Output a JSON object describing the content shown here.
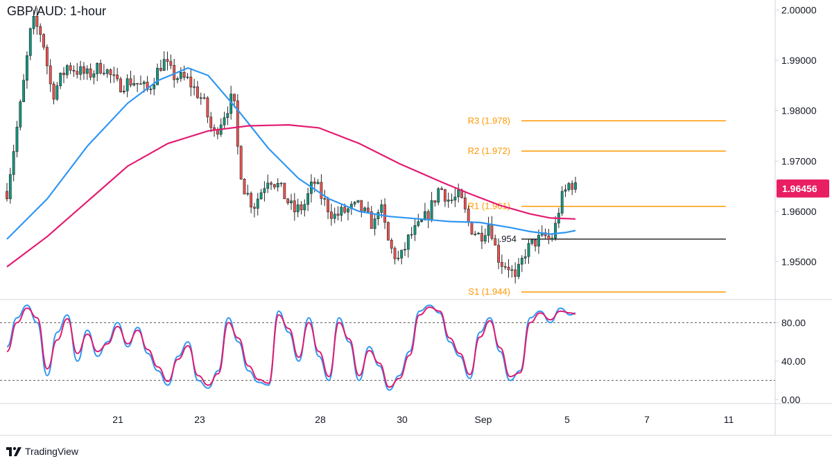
{
  "chart_title": "GBP/AUD: 1-hour",
  "branding": {
    "name": "TradingView",
    "logo_text": "TV"
  },
  "colors": {
    "bull": "#0f9980",
    "bear": "#ef5350",
    "candle": "#222222",
    "sma100": "#2f96f3",
    "sma200": "#e31a6f",
    "pivot": "#ff9800",
    "support_line": "#000000",
    "stoch_k": "#2f96f3",
    "stoch_d": "#e31a6f",
    "price_tag": "#e91e63",
    "axis_text": "#131722",
    "border": "#d1d4dc"
  },
  "chart_data": [
    {
      "type": "candlestick",
      "title": "GBP/AUD: 1-hour",
      "price_axis": {
        "ticks": [
          "2.00000",
          "1.99000",
          "1.98000",
          "1.97000",
          "1.96000",
          "1.95000"
        ],
        "range": [
          1.9425,
          2.002
        ]
      },
      "time_axis": {
        "labels": [
          "21",
          "23",
          "28",
          "30",
          "Sep",
          "5",
          "7",
          "11"
        ]
      },
      "current_price": "1.96456",
      "levels": [
        {
          "label": "R3 (1.978)",
          "value": 1.978
        },
        {
          "label": "R2 (1.972)",
          "value": 1.972
        },
        {
          "label": "R1 (1.961)",
          "value": 1.961
        },
        {
          "label": ".954",
          "value": 1.9545
        },
        {
          "label": "S1 (1.944)",
          "value": 1.944
        }
      ],
      "price_path": [
        [
          0,
          1.964
        ],
        [
          3,
          1.983
        ],
        [
          5,
          1.998
        ],
        [
          7,
          1.995
        ],
        [
          9,
          1.983
        ],
        [
          12,
          1.989
        ],
        [
          16,
          1.987
        ],
        [
          19,
          1.989
        ],
        [
          22,
          1.985
        ],
        [
          25,
          1.986
        ],
        [
          28,
          1.984
        ],
        [
          31,
          1.99
        ],
        [
          33,
          1.987
        ],
        [
          36,
          1.986
        ],
        [
          39,
          1.982
        ],
        [
          41,
          1.975
        ],
        [
          43,
          1.979
        ],
        [
          45,
          1.983
        ],
        [
          46,
          1.971
        ],
        [
          47,
          1.965
        ],
        [
          49,
          1.961
        ],
        [
          52,
          1.967
        ],
        [
          54,
          1.965
        ],
        [
          57,
          1.96
        ],
        [
          59,
          1.961
        ],
        [
          61,
          1.966
        ],
        [
          63,
          1.962
        ],
        [
          65,
          1.959
        ],
        [
          67,
          1.96
        ],
        [
          70,
          1.961
        ],
        [
          73,
          1.957
        ],
        [
          74,
          1.962
        ],
        [
          76,
          1.953
        ],
        [
          78,
          1.95
        ],
        [
          80,
          1.955
        ],
        [
          82,
          1.957
        ],
        [
          84,
          1.96
        ],
        [
          86,
          1.965
        ],
        [
          88,
          1.962
        ],
        [
          90,
          1.963
        ],
        [
          92,
          1.957
        ],
        [
          94,
          1.955
        ],
        [
          96,
          1.958
        ],
        [
          97,
          1.953
        ],
        [
          98,
          1.95
        ],
        [
          100,
          1.949
        ],
        [
          101,
          1.946
        ],
        [
          103,
          1.952
        ],
        [
          105,
          1.954
        ],
        [
          107,
          1.955
        ],
        [
          108,
          1.954
        ],
        [
          109,
          1.957
        ],
        [
          110,
          1.962
        ],
        [
          112,
          1.966
        ],
        [
          113,
          1.9646
        ]
      ],
      "series": [
        {
          "name": "",
          "type": "sma",
          "values": [
            [
              0,
              1.9545
            ],
            [
              8,
              1.9625
            ],
            [
              16,
              1.973
            ],
            [
              24,
              1.9815
            ],
            [
              30,
              1.986
            ],
            [
              36,
              1.9885
            ],
            [
              40,
              1.987
            ],
            [
              46,
              1.98
            ],
            [
              52,
              1.9725
            ],
            [
              58,
              1.9665
            ],
            [
              64,
              1.9625
            ],
            [
              70,
              1.96
            ],
            [
              76,
              1.959
            ],
            [
              82,
              1.9585
            ],
            [
              88,
              1.958
            ],
            [
              94,
              1.9578
            ],
            [
              100,
              1.9568
            ],
            [
              104,
              1.956
            ],
            [
              108,
              1.9555
            ],
            [
              111,
              1.9558
            ],
            [
              113,
              1.9562
            ]
          ]
        },
        {
          "name": "",
          "type": "sma",
          "values": [
            [
              0,
              1.949
            ],
            [
              8,
              1.955
            ],
            [
              16,
              1.962
            ],
            [
              24,
              1.969
            ],
            [
              32,
              1.9735
            ],
            [
              40,
              1.976
            ],
            [
              48,
              1.977
            ],
            [
              56,
              1.9772
            ],
            [
              62,
              1.9766
            ],
            [
              70,
              1.9735
            ],
            [
              78,
              1.9695
            ],
            [
              86,
              1.966
            ],
            [
              92,
              1.9635
            ],
            [
              98,
              1.9612
            ],
            [
              104,
              1.9595
            ],
            [
              108,
              1.9587
            ],
            [
              113,
              1.9585
            ]
          ]
        }
      ]
    },
    {
      "type": "line",
      "title": "",
      "y_ticks": [
        "80.00",
        "40.00",
        "0.00"
      ],
      "ylim": [
        -4,
        104
      ],
      "reference_lines": [
        80,
        20
      ],
      "x": [
        0,
        2,
        4,
        6,
        8,
        10,
        12,
        14,
        16,
        18,
        20,
        22,
        24,
        26,
        28,
        30,
        32,
        34,
        36,
        38,
        40,
        42,
        44,
        46,
        48,
        50,
        52,
        54,
        56,
        58,
        60,
        62,
        64,
        66,
        68,
        70,
        72,
        74,
        76,
        78,
        80,
        82,
        84,
        86,
        88,
        90,
        92,
        94,
        96,
        98,
        100,
        102,
        104,
        106,
        108,
        110,
        112,
        113
      ],
      "series": [
        {
          "name": "",
          "values": [
            55,
            85,
            98,
            80,
            25,
            70,
            88,
            40,
            72,
            45,
            60,
            80,
            55,
            75,
            48,
            30,
            15,
            45,
            60,
            20,
            12,
            30,
            85,
            60,
            30,
            18,
            15,
            92,
            70,
            40,
            85,
            45,
            20,
            85,
            60,
            20,
            55,
            35,
            10,
            25,
            50,
            92,
            98,
            90,
            60,
            45,
            22,
            70,
            85,
            50,
            20,
            30,
            85,
            92,
            80,
            95,
            88,
            90
          ]
        },
        {
          "name": "",
          "values": [
            50,
            80,
            95,
            85,
            32,
            62,
            84,
            48,
            68,
            50,
            58,
            76,
            58,
            72,
            52,
            34,
            19,
            42,
            56,
            25,
            15,
            27,
            80,
            64,
            35,
            21,
            17,
            88,
            74,
            44,
            80,
            50,
            24,
            80,
            63,
            25,
            51,
            38,
            13,
            22,
            46,
            88,
            96,
            92,
            64,
            48,
            26,
            65,
            82,
            54,
            24,
            28,
            80,
            90,
            83,
            92,
            90,
            89
          ]
        }
      ]
    }
  ]
}
